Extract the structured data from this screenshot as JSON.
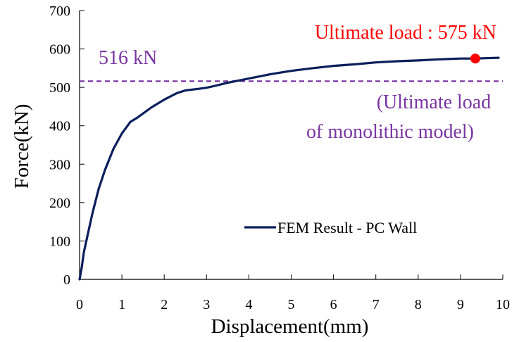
{
  "chart_data": {
    "type": "line",
    "xlabel": "Displacement(mm)",
    "ylabel": "Force(kN)",
    "xlim": [
      0,
      10
    ],
    "ylim": [
      0,
      700
    ],
    "x_ticks": [
      0,
      1,
      2,
      3,
      4,
      5,
      6,
      7,
      8,
      9,
      10
    ],
    "y_ticks": [
      0,
      100,
      200,
      300,
      400,
      500,
      600,
      700
    ],
    "grid": false,
    "legend_position": "lower-right",
    "series": [
      {
        "name": "FEM Result - PC Wall",
        "color": "#0b1f5c",
        "x": [
          0,
          0.05,
          0.1,
          0.2,
          0.3,
          0.45,
          0.6,
          0.8,
          1.0,
          1.2,
          1.35,
          1.5,
          1.7,
          2.0,
          2.3,
          2.5,
          2.8,
          3.0,
          3.2,
          3.5,
          4.0,
          4.5,
          5.0,
          5.5,
          6.0,
          6.5,
          7.0,
          7.5,
          8.0,
          8.5,
          9.0,
          9.35,
          9.6,
          9.9
        ],
        "y": [
          0,
          30,
          70,
          120,
          170,
          235,
          285,
          340,
          380,
          410,
          420,
          432,
          448,
          468,
          485,
          492,
          496,
          499,
          504,
          512,
          523,
          534,
          543,
          550,
          556,
          560,
          565,
          568,
          570,
          573,
          575,
          575,
          576,
          577
        ]
      }
    ],
    "reference_line": {
      "value": 516,
      "color": "#7a35a3",
      "style": "dashed",
      "label": "516 kN",
      "note_line1": "(Ultimate load",
      "note_line2": "of monolithic model)"
    },
    "marker": {
      "x": 9.35,
      "y": 575,
      "color": "#ff0000",
      "label": "Ultimate load : 575 kN"
    }
  }
}
